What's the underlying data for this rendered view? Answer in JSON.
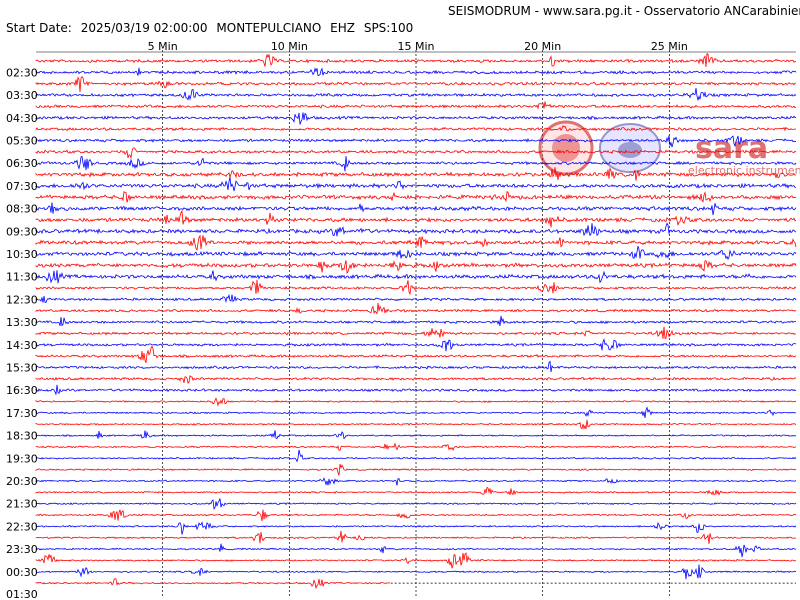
{
  "header": {
    "title": "SEISMODRUM - www.sara.pg.it - Osservatorio ANCarabinieri",
    "start_label": "Start Date:",
    "start_date": "2025/03/19 02:00:00",
    "station": "MONTEPULCIANO",
    "channel": "EHZ",
    "sps": "SPS:100"
  },
  "watermark": {
    "brand": "sara",
    "tagline": "electronic instruments"
  },
  "colors": {
    "trace_a": "#ff0000",
    "trace_b": "#0000ff",
    "grid": "#000000",
    "background": "#ffffff"
  },
  "chart_data": {
    "type": "line",
    "title": "SEISMODRUM - www.sara.pg.it - Osservatorio ANCarabinieri",
    "xlabel": "",
    "ylabel": "",
    "x_ticks": [
      "5 Min",
      "10 Min",
      "15 Min",
      "20 Min",
      "25 Min"
    ],
    "x_tick_minutes": [
      5,
      10,
      15,
      20,
      25
    ],
    "xlim_minutes": [
      0,
      30
    ],
    "row_count": 47,
    "row_span_minutes": 30,
    "y_labels": [
      "02:30",
      "03:30",
      "04:30",
      "05:30",
      "06:30",
      "07:30",
      "08:30",
      "09:30",
      "10:30",
      "11:30",
      "12:30",
      "13:30",
      "14:30",
      "15:30",
      "16:30",
      "17:30",
      "18:30",
      "19:30",
      "20:30",
      "21:30",
      "22:30",
      "23:30",
      "00:30",
      "01:30"
    ],
    "series": [
      {
        "name": "",
        "color": "#ff0000",
        "rows": "alternate-first"
      },
      {
        "name": "",
        "color": "#0000ff",
        "rows": "alternate-second"
      }
    ],
    "last_row_end_minute": 14,
    "grid": "dashed vertical at tick minutes"
  }
}
